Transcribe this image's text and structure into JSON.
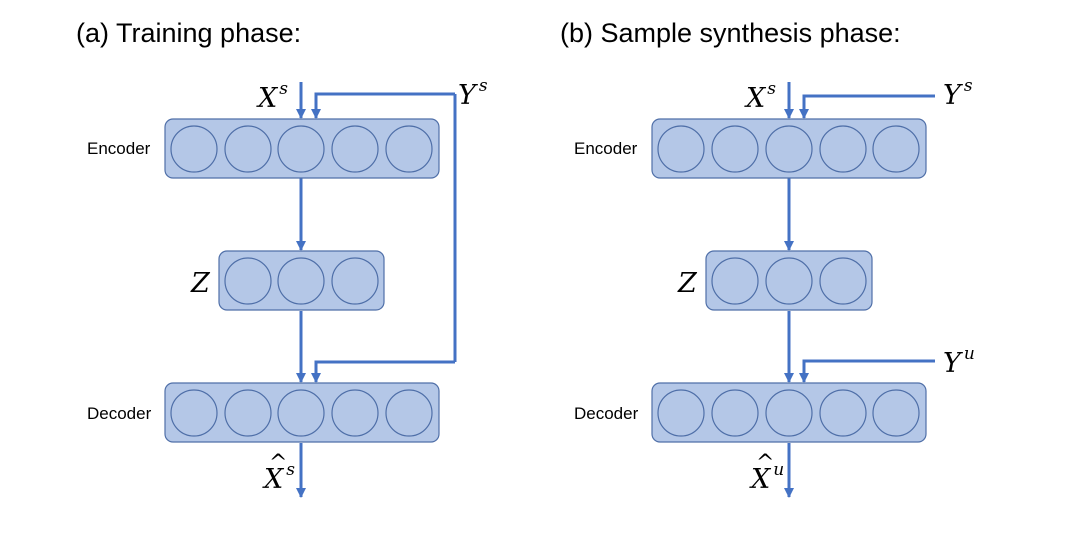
{
  "panels": {
    "training": {
      "title": "(a) Training phase:",
      "encoder_label": "Encoder",
      "decoder_label": "Decoder",
      "input_x": {
        "base": "X",
        "sup": "s"
      },
      "input_y": {
        "base": "Y",
        "sup": "s"
      },
      "latent": {
        "base": "Z"
      },
      "output": {
        "base": "X",
        "sup": "s",
        "hat": "^"
      }
    },
    "synthesis": {
      "title": "(b) Sample synthesis phase:",
      "encoder_label": "Encoder",
      "decoder_label": "Decoder",
      "input_x": {
        "base": "X",
        "sup": "s"
      },
      "input_y": {
        "base": "Y",
        "sup": "s"
      },
      "latent": {
        "base": "Z"
      },
      "decoder_y": {
        "base": "Y",
        "sup": "u"
      },
      "output": {
        "base": "X",
        "sup": "u",
        "hat": "^"
      }
    }
  },
  "colors": {
    "layer_fill": "#b4c7e7",
    "layer_stroke": "#4f6fa8",
    "arrow": "#4472c4"
  }
}
